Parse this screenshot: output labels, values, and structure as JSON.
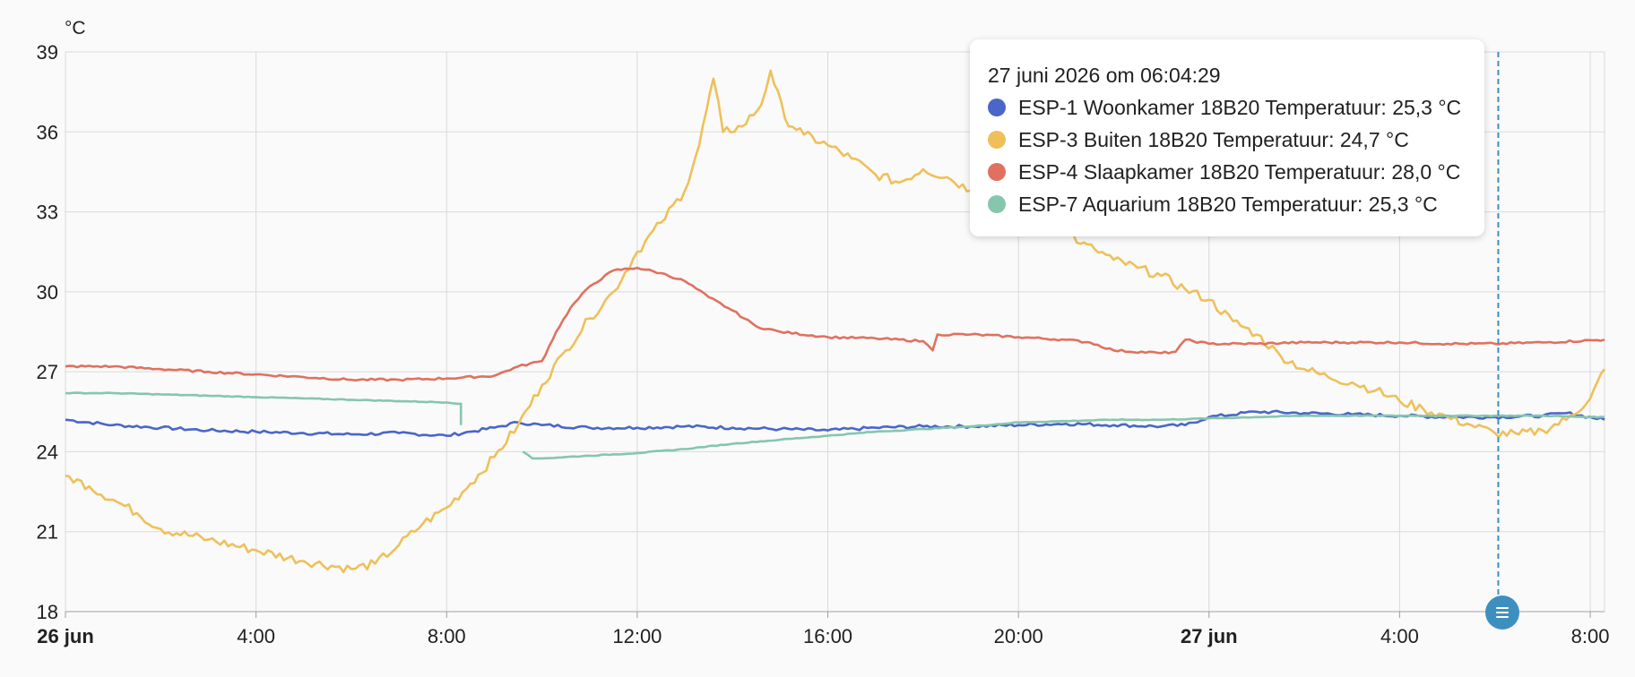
{
  "chart_data": {
    "type": "line",
    "unit_label": "°C",
    "y_ticks": [
      "39",
      "36",
      "33",
      "30",
      "27",
      "24",
      "21",
      "18"
    ],
    "ylim": [
      18,
      39
    ],
    "x_ticks": [
      {
        "label": "26 jun",
        "t": 0,
        "bold": true
      },
      {
        "label": "4:00",
        "t": 4,
        "bold": false
      },
      {
        "label": "8:00",
        "t": 8,
        "bold": false
      },
      {
        "label": "12:00",
        "t": 12,
        "bold": false
      },
      {
        "label": "16:00",
        "t": 16,
        "bold": false
      },
      {
        "label": "20:00",
        "t": 20,
        "bold": false
      },
      {
        "label": "27 jun",
        "t": 24,
        "bold": true
      },
      {
        "label": "4:00",
        "t": 28,
        "bold": false
      },
      {
        "label": "8:00",
        "t": 32,
        "bold": false
      }
    ],
    "xlim_hours": [
      0,
      32.3
    ],
    "grid": true,
    "series": [
      {
        "name": "ESP-1 Woonkamer 18B20 Temperatuur",
        "color": "#4a66c8",
        "points": [
          [
            0,
            25.2
          ],
          [
            1,
            25.0
          ],
          [
            2,
            24.9
          ],
          [
            3,
            24.8
          ],
          [
            4,
            24.75
          ],
          [
            5,
            24.7
          ],
          [
            6,
            24.65
          ],
          [
            7,
            24.7
          ],
          [
            8,
            24.6
          ],
          [
            8.5,
            24.75
          ],
          [
            9,
            24.9
          ],
          [
            9.5,
            25.1
          ],
          [
            10,
            25.0
          ],
          [
            11,
            24.9
          ],
          [
            12,
            24.9
          ],
          [
            13,
            24.95
          ],
          [
            14,
            24.9
          ],
          [
            15,
            24.85
          ],
          [
            16,
            24.8
          ],
          [
            17,
            24.9
          ],
          [
            18,
            24.95
          ],
          [
            19,
            24.95
          ],
          [
            20,
            25.0
          ],
          [
            21,
            25.05
          ],
          [
            22,
            25.0
          ],
          [
            23,
            24.95
          ],
          [
            23.5,
            25.0
          ],
          [
            24,
            25.3
          ],
          [
            25,
            25.5
          ],
          [
            26,
            25.45
          ],
          [
            27,
            25.4
          ],
          [
            28,
            25.35
          ],
          [
            29,
            25.3
          ],
          [
            30,
            25.3
          ],
          [
            31,
            25.35
          ],
          [
            31.5,
            25.45
          ],
          [
            32.3,
            25.2
          ]
        ]
      },
      {
        "name": "ESP-3 Buiten 18B20 Temperatuur",
        "color": "#efc05a",
        "points": [
          [
            0,
            23.1
          ],
          [
            0.5,
            22.7
          ],
          [
            1,
            22.2
          ],
          [
            1.5,
            21.7
          ],
          [
            2,
            21.1
          ],
          [
            3,
            20.7
          ],
          [
            4,
            20.3
          ],
          [
            5,
            19.9
          ],
          [
            6,
            19.6
          ],
          [
            6.5,
            19.8
          ],
          [
            7,
            20.5
          ],
          [
            7.5,
            21.3
          ],
          [
            8,
            21.9
          ],
          [
            8.5,
            22.8
          ],
          [
            9,
            23.8
          ],
          [
            9.5,
            25.0
          ],
          [
            10,
            26.5
          ],
          [
            10.5,
            27.8
          ],
          [
            11,
            29.0
          ],
          [
            11.5,
            30.0
          ],
          [
            12,
            31.5
          ],
          [
            12.5,
            32.6
          ],
          [
            13,
            33.8
          ],
          [
            13.3,
            35.5
          ],
          [
            13.6,
            38.0
          ],
          [
            13.8,
            36.0
          ],
          [
            14.2,
            36.2
          ],
          [
            14.6,
            37.0
          ],
          [
            14.8,
            38.3
          ],
          [
            15.1,
            36.5
          ],
          [
            15.5,
            35.9
          ],
          [
            16,
            35.5
          ],
          [
            16.5,
            35.0
          ],
          [
            17,
            34.4
          ],
          [
            17.5,
            34.1
          ],
          [
            18,
            34.6
          ],
          [
            18.5,
            34.3
          ],
          [
            19,
            33.8
          ],
          [
            19.5,
            33.6
          ],
          [
            20,
            33.5
          ],
          [
            20.5,
            33.0
          ],
          [
            21,
            32.4
          ],
          [
            21.3,
            31.8
          ],
          [
            21.6,
            31.6
          ],
          [
            22,
            31.2
          ],
          [
            22.5,
            30.9
          ],
          [
            23,
            30.6
          ],
          [
            23.5,
            30.1
          ],
          [
            24,
            29.7
          ],
          [
            24.5,
            28.9
          ],
          [
            25,
            28.4
          ],
          [
            25.5,
            27.6
          ],
          [
            26,
            27.1
          ],
          [
            26.5,
            26.8
          ],
          [
            27,
            26.6
          ],
          [
            27.5,
            26.3
          ],
          [
            28,
            25.9
          ],
          [
            28.5,
            25.6
          ],
          [
            29,
            25.3
          ],
          [
            29.5,
            25.0
          ],
          [
            30,
            24.7
          ],
          [
            30.5,
            24.65
          ],
          [
            31,
            24.8
          ],
          [
            31.5,
            25.2
          ],
          [
            32,
            26.0
          ],
          [
            32.3,
            27.1
          ]
        ]
      },
      {
        "name": "ESP-4 Slaapkamer 18B20 Temperatuur",
        "color": "#e0715f",
        "points": [
          [
            0,
            27.2
          ],
          [
            1,
            27.2
          ],
          [
            2,
            27.1
          ],
          [
            3,
            27.0
          ],
          [
            4,
            26.9
          ],
          [
            5,
            26.8
          ],
          [
            6,
            26.7
          ],
          [
            7,
            26.7
          ],
          [
            8,
            26.75
          ],
          [
            9,
            26.85
          ],
          [
            9.5,
            27.2
          ],
          [
            10,
            27.4
          ],
          [
            10.3,
            28.5
          ],
          [
            10.6,
            29.4
          ],
          [
            11,
            30.2
          ],
          [
            11.5,
            30.8
          ],
          [
            12,
            30.9
          ],
          [
            12.5,
            30.7
          ],
          [
            13,
            30.4
          ],
          [
            13.5,
            29.8
          ],
          [
            14,
            29.3
          ],
          [
            14.5,
            28.7
          ],
          [
            15,
            28.5
          ],
          [
            16,
            28.3
          ],
          [
            17,
            28.25
          ],
          [
            18,
            28.15
          ],
          [
            18.2,
            27.8
          ],
          [
            18.3,
            28.4
          ],
          [
            19,
            28.4
          ],
          [
            20,
            28.3
          ],
          [
            21,
            28.2
          ],
          [
            21.5,
            28.1
          ],
          [
            22,
            27.8
          ],
          [
            23,
            27.7
          ],
          [
            23.3,
            27.75
          ],
          [
            23.5,
            28.2
          ],
          [
            24,
            28.05
          ],
          [
            25,
            28.05
          ],
          [
            26,
            28.1
          ],
          [
            27,
            28.1
          ],
          [
            28,
            28.1
          ],
          [
            29,
            28.05
          ],
          [
            30,
            28.05
          ],
          [
            31,
            28.1
          ],
          [
            32.3,
            28.2
          ]
        ]
      },
      {
        "name": "ESP-7 Aquarium 18B20 Temperatuur",
        "color": "#86c6ad",
        "segments": [
          [
            [
              0,
              26.2
            ],
            [
              1,
              26.2
            ],
            [
              2,
              26.15
            ],
            [
              3,
              26.1
            ],
            [
              4,
              26.05
            ],
            [
              5,
              26.0
            ],
            [
              6,
              25.95
            ],
            [
              7,
              25.9
            ],
            [
              8,
              25.85
            ],
            [
              8.3,
              25.8
            ],
            [
              8.3,
              25.0
            ]
          ],
          [
            [
              9.6,
              24.0
            ],
            [
              9.8,
              23.75
            ],
            [
              10,
              23.75
            ],
            [
              11,
              23.85
            ],
            [
              12,
              23.95
            ],
            [
              13,
              24.1
            ],
            [
              14,
              24.3
            ],
            [
              15,
              24.45
            ],
            [
              16,
              24.6
            ],
            [
              17,
              24.75
            ],
            [
              18,
              24.85
            ],
            [
              19,
              24.95
            ],
            [
              20,
              25.1
            ],
            [
              21,
              25.15
            ],
            [
              22,
              25.2
            ],
            [
              23,
              25.2
            ],
            [
              24,
              25.25
            ],
            [
              25,
              25.3
            ],
            [
              26,
              25.35
            ],
            [
              27,
              25.35
            ],
            [
              28,
              25.35
            ],
            [
              29,
              25.35
            ],
            [
              30,
              25.35
            ],
            [
              31,
              25.35
            ],
            [
              32,
              25.3
            ],
            [
              32.3,
              25.3
            ]
          ]
        ]
      }
    ],
    "cursor_hours": 30.07
  },
  "tooltip": {
    "title": "27 juni 2026 om 06:04:29",
    "rows": [
      {
        "text": "ESP-1 Woonkamer 18B20 Temperatuur: 25,3 °C",
        "color": "#4a66c8"
      },
      {
        "text": "ESP-3 Buiten 18B20 Temperatuur: 24,7 °C",
        "color": "#efc05a"
      },
      {
        "text": "ESP-4 Slaapkamer 18B20 Temperatuur: 28,0 °C",
        "color": "#e0715f"
      },
      {
        "text": "ESP-7 Aquarium 18B20 Temperatuur: 25,3 °C",
        "color": "#86c6ad"
      }
    ]
  },
  "cursor_marker_icon": "list-icon"
}
